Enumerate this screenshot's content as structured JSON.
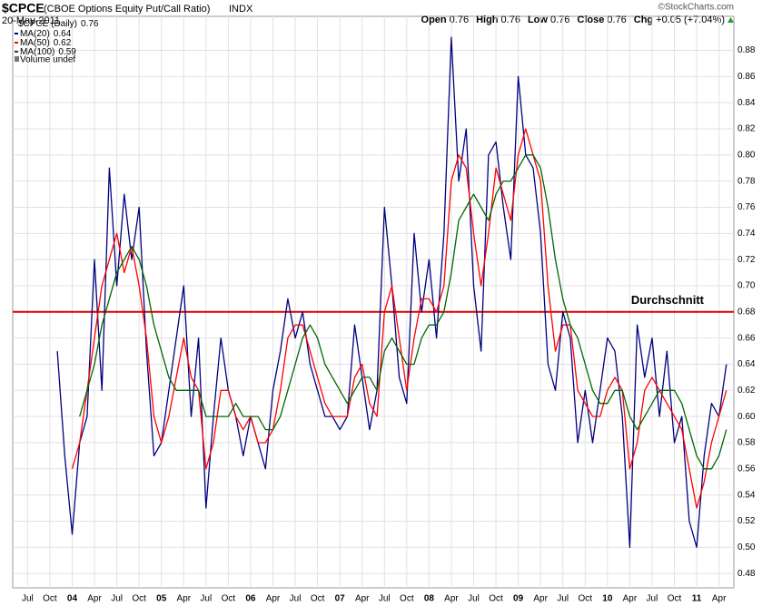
{
  "header": {
    "symbol": "$CPCE",
    "description": "(CBOE Options Equity Put/Call Ratio)",
    "exchange": "INDX",
    "date": "20-May-2011",
    "credit": "©StockCharts.com",
    "quote": [
      {
        "label": "Open",
        "value": 0.76
      },
      {
        "label": "High",
        "value": 0.76
      },
      {
        "label": "Low",
        "value": 0.76
      },
      {
        "label": "Close",
        "value": 0.76
      },
      {
        "label": "Chg",
        "value": "+0.05 (+7.04%)"
      }
    ]
  },
  "chart_data": {
    "type": "line",
    "legend": {
      "price_label": "$CPCE (Daily)",
      "price_value": 0.76,
      "volume_label": "Volume undef",
      "position": "top-left"
    },
    "x": [
      "2003-11",
      "2003-12",
      "2004-01",
      "2004-02",
      "2004-03",
      "2004-04",
      "2004-05",
      "2004-06",
      "2004-07",
      "2004-08",
      "2004-09",
      "2004-10",
      "2004-11",
      "2004-12",
      "2005-01",
      "2005-02",
      "2005-03",
      "2005-04",
      "2005-05",
      "2005-06",
      "2005-07",
      "2005-08",
      "2005-09",
      "2005-10",
      "2005-11",
      "2005-12",
      "2006-01",
      "2006-02",
      "2006-03",
      "2006-04",
      "2006-05",
      "2006-06",
      "2006-07",
      "2006-08",
      "2006-09",
      "2006-10",
      "2006-11",
      "2006-12",
      "2007-01",
      "2007-02",
      "2007-03",
      "2007-04",
      "2007-05",
      "2007-06",
      "2007-07",
      "2007-08",
      "2007-09",
      "2007-10",
      "2007-11",
      "2007-12",
      "2008-01",
      "2008-02",
      "2008-03",
      "2008-04",
      "2008-05",
      "2008-06",
      "2008-07",
      "2008-08",
      "2008-09",
      "2008-10",
      "2008-11",
      "2008-12",
      "2009-01",
      "2009-02",
      "2009-03",
      "2009-04",
      "2009-05",
      "2009-06",
      "2009-07",
      "2009-08",
      "2009-09",
      "2009-10",
      "2009-11",
      "2009-12",
      "2010-01",
      "2010-02",
      "2010-03",
      "2010-04",
      "2010-05",
      "2010-06",
      "2010-07",
      "2010-08",
      "2010-09",
      "2010-10",
      "2010-11",
      "2010-12",
      "2011-01",
      "2011-02",
      "2011-03",
      "2011-04",
      "2011-05"
    ],
    "series": [
      {
        "name": "MA(20)",
        "last": 0.64,
        "color": "#000080",
        "values": [
          0.65,
          0.57,
          0.51,
          0.58,
          0.6,
          0.72,
          0.62,
          0.79,
          0.7,
          0.77,
          0.72,
          0.76,
          0.65,
          0.57,
          0.58,
          0.62,
          0.66,
          0.7,
          0.6,
          0.66,
          0.53,
          0.6,
          0.66,
          0.62,
          0.6,
          0.57,
          0.6,
          0.58,
          0.56,
          0.62,
          0.65,
          0.69,
          0.66,
          0.68,
          0.64,
          0.62,
          0.6,
          0.6,
          0.59,
          0.6,
          0.67,
          0.63,
          0.59,
          0.62,
          0.76,
          0.7,
          0.63,
          0.61,
          0.74,
          0.68,
          0.72,
          0.66,
          0.74,
          0.89,
          0.78,
          0.82,
          0.7,
          0.65,
          0.8,
          0.81,
          0.76,
          0.72,
          0.86,
          0.8,
          0.79,
          0.74,
          0.64,
          0.62,
          0.68,
          0.66,
          0.58,
          0.62,
          0.58,
          0.62,
          0.66,
          0.65,
          0.6,
          0.5,
          0.67,
          0.63,
          0.66,
          0.6,
          0.65,
          0.58,
          0.6,
          0.52,
          0.5,
          0.57,
          0.61,
          0.6,
          0.64
        ]
      },
      {
        "name": "MA(50)",
        "last": 0.62,
        "color": "#ff0000",
        "values": [
          null,
          null,
          0.56,
          0.58,
          0.62,
          0.66,
          0.7,
          0.72,
          0.74,
          0.71,
          0.73,
          0.7,
          0.66,
          0.6,
          0.58,
          0.6,
          0.63,
          0.66,
          0.63,
          0.62,
          0.56,
          0.58,
          0.62,
          0.62,
          0.6,
          0.59,
          0.6,
          0.58,
          0.58,
          0.59,
          0.62,
          0.66,
          0.67,
          0.67,
          0.65,
          0.63,
          0.61,
          0.6,
          0.6,
          0.6,
          0.63,
          0.64,
          0.61,
          0.6,
          0.68,
          0.7,
          0.66,
          0.62,
          0.66,
          0.69,
          0.69,
          0.68,
          0.7,
          0.78,
          0.8,
          0.79,
          0.74,
          0.7,
          0.74,
          0.79,
          0.77,
          0.75,
          0.8,
          0.82,
          0.8,
          0.78,
          0.7,
          0.65,
          0.67,
          0.67,
          0.62,
          0.61,
          0.6,
          0.6,
          0.62,
          0.63,
          0.62,
          0.56,
          0.58,
          0.62,
          0.63,
          0.62,
          0.61,
          0.6,
          0.59,
          0.56,
          0.53,
          0.55,
          0.58,
          0.6,
          0.62
        ]
      },
      {
        "name": "MA(100)",
        "last": 0.59,
        "color": "#006600",
        "values": [
          null,
          null,
          null,
          0.6,
          0.62,
          0.64,
          0.67,
          0.69,
          0.71,
          0.72,
          0.73,
          0.72,
          0.7,
          0.67,
          0.65,
          0.63,
          0.62,
          0.62,
          0.62,
          0.62,
          0.6,
          0.6,
          0.6,
          0.6,
          0.61,
          0.6,
          0.6,
          0.6,
          0.59,
          0.59,
          0.6,
          0.62,
          0.64,
          0.66,
          0.67,
          0.66,
          0.64,
          0.63,
          0.62,
          0.61,
          0.62,
          0.63,
          0.63,
          0.62,
          0.65,
          0.66,
          0.65,
          0.64,
          0.64,
          0.66,
          0.67,
          0.67,
          0.68,
          0.71,
          0.75,
          0.76,
          0.77,
          0.76,
          0.75,
          0.77,
          0.78,
          0.78,
          0.79,
          0.8,
          0.8,
          0.79,
          0.76,
          0.72,
          0.69,
          0.67,
          0.66,
          0.64,
          0.62,
          0.61,
          0.61,
          0.62,
          0.62,
          0.6,
          0.59,
          0.6,
          0.61,
          0.62,
          0.62,
          0.62,
          0.61,
          0.59,
          0.57,
          0.56,
          0.56,
          0.57,
          0.59
        ]
      }
    ],
    "reference_line": {
      "value": 0.68,
      "label": "Durchschnitt",
      "color": "#dd0000"
    },
    "xlim": [
      "2003-05",
      "2011-06"
    ],
    "xticks": [
      {
        "value": "2003-07",
        "label": "Jul"
      },
      {
        "value": "2003-10",
        "label": "Oct"
      },
      {
        "value": "2004-01",
        "label": "04"
      },
      {
        "value": "2004-04",
        "label": "Apr"
      },
      {
        "value": "2004-07",
        "label": "Jul"
      },
      {
        "value": "2004-10",
        "label": "Oct"
      },
      {
        "value": "2005-01",
        "label": "05"
      },
      {
        "value": "2005-04",
        "label": "Apr"
      },
      {
        "value": "2005-07",
        "label": "Jul"
      },
      {
        "value": "2005-10",
        "label": "Oct"
      },
      {
        "value": "2006-01",
        "label": "06"
      },
      {
        "value": "2006-04",
        "label": "Apr"
      },
      {
        "value": "2006-07",
        "label": "Jul"
      },
      {
        "value": "2006-10",
        "label": "Oct"
      },
      {
        "value": "2007-01",
        "label": "07"
      },
      {
        "value": "2007-04",
        "label": "Apr"
      },
      {
        "value": "2007-07",
        "label": "Jul"
      },
      {
        "value": "2007-10",
        "label": "Oct"
      },
      {
        "value": "2008-01",
        "label": "08"
      },
      {
        "value": "2008-04",
        "label": "Apr"
      },
      {
        "value": "2008-07",
        "label": "Jul"
      },
      {
        "value": "2008-10",
        "label": "Oct"
      },
      {
        "value": "2009-01",
        "label": "09"
      },
      {
        "value": "2009-04",
        "label": "Apr"
      },
      {
        "value": "2009-07",
        "label": "Jul"
      },
      {
        "value": "2009-10",
        "label": "Oct"
      },
      {
        "value": "2010-01",
        "label": "10"
      },
      {
        "value": "2010-04",
        "label": "Apr"
      },
      {
        "value": "2010-07",
        "label": "Jul"
      },
      {
        "value": "2010-10",
        "label": "Oct"
      },
      {
        "value": "2011-01",
        "label": "11"
      },
      {
        "value": "2011-04",
        "label": "Apr"
      }
    ],
    "ylim": [
      0.469,
      0.906
    ],
    "yticks": [
      0.48,
      {
        "value": 0.5,
        "label": "0.50"
      },
      0.52,
      0.54,
      0.56,
      0.58,
      {
        "value": 0.6,
        "label": "0.60"
      },
      0.62,
      0.64,
      0.66,
      0.68,
      {
        "value": 0.7,
        "label": "0.70"
      },
      0.72,
      0.74,
      0.76,
      0.78,
      {
        "value": 0.8,
        "label": "0.80"
      },
      0.82,
      0.84,
      0.86,
      0.88
    ],
    "grid": true
  }
}
